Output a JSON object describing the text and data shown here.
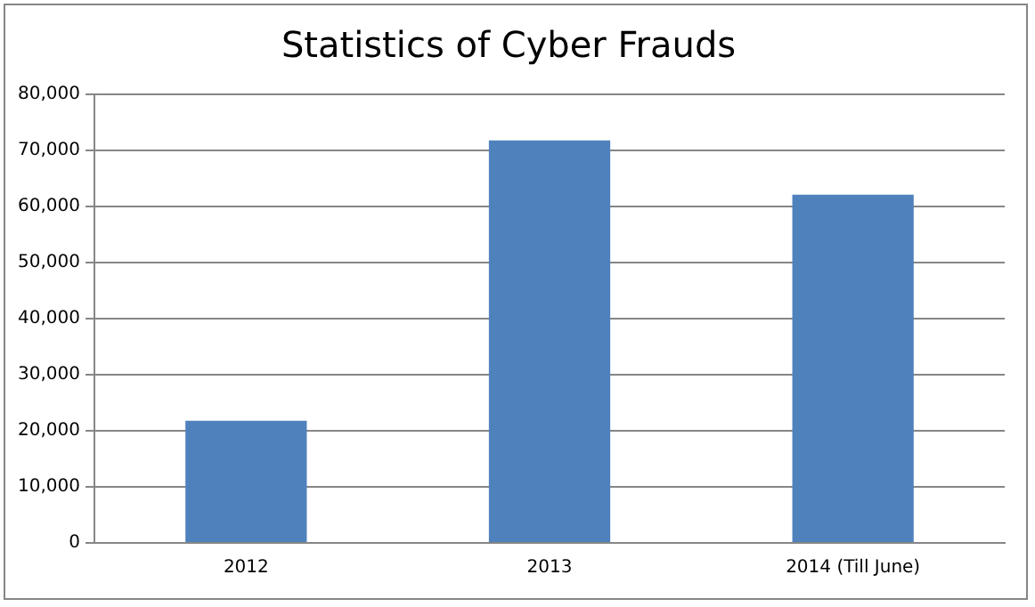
{
  "chart_data": {
    "type": "bar",
    "title": "Statistics of Cyber Frauds",
    "categories": [
      "2012",
      "2013",
      "2014 (Till June)"
    ],
    "values": [
      21800,
      71800,
      62100
    ],
    "color": "#4f81bd",
    "ylim": [
      0,
      80000
    ],
    "yticks": [
      0,
      {
        "value": 10000,
        "label": "10,000"
      },
      {
        "value": 20000,
        "label": "20,000"
      },
      {
        "value": 30000,
        "label": "30,000"
      },
      {
        "value": 40000,
        "label": "40,000"
      },
      {
        "value": 50000,
        "label": "50,000"
      },
      {
        "value": 60000,
        "label": "60,000"
      },
      {
        "value": 70000,
        "label": "70,000"
      },
      {
        "value": 80000,
        "label": "80,000"
      }
    ],
    "grid": "y",
    "legend": false
  }
}
